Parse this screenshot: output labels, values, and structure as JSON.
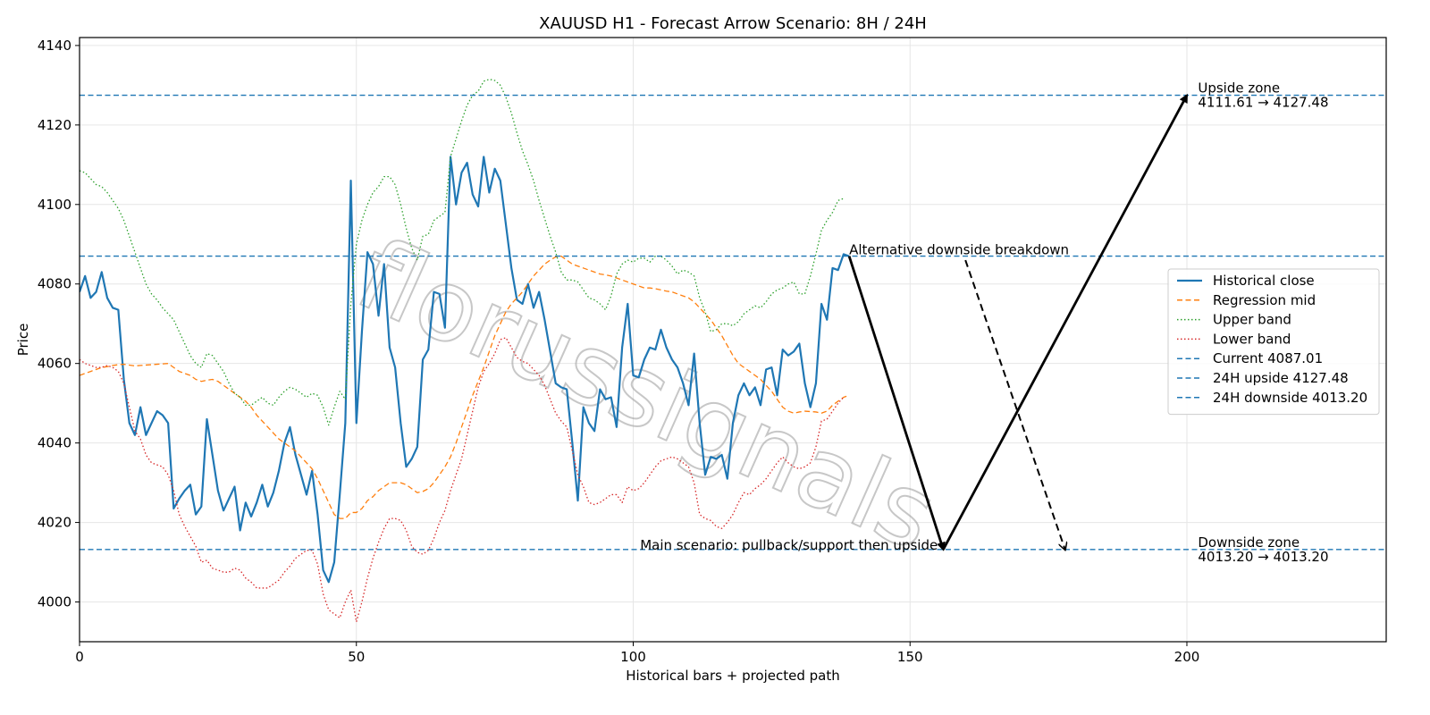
{
  "chart_data": {
    "type": "line",
    "title": "XAUUSD H1 - Forecast Arrow Scenario: 8H / 24H",
    "xlabel": "Historical bars + projected path",
    "ylabel": "Price",
    "xlim": [
      0,
      236
    ],
    "ylim": [
      3990,
      4142
    ],
    "x_ticks": [
      0,
      50,
      100,
      150,
      200
    ],
    "y_ticks": [
      4000,
      4020,
      4040,
      4060,
      4080,
      4100,
      4120,
      4140
    ],
    "grid": true,
    "legend_position": "center-right",
    "watermark": "florussignals",
    "series": [
      {
        "name": "Historical close",
        "style": "solid",
        "color": "#1f77b4",
        "values": [
          4078,
          4082,
          4076.5,
          4078,
          4083,
          4076.5,
          4074,
          4073.5,
          4056,
          4045,
          4042,
          4049,
          4042,
          4045,
          4048,
          4047,
          4045,
          4023.5,
          4026,
          4028,
          4029.5,
          4022,
          4024,
          4046,
          4037,
          4028,
          4023,
          4026,
          4029,
          4018,
          4025,
          4021.5,
          4025,
          4029.5,
          4024,
          4027.5,
          4033,
          4040,
          4044,
          4037,
          4032,
          4027,
          4033,
          4022,
          4008,
          4005,
          4010,
          4027,
          4045,
          4106,
          4045,
          4068,
          4088,
          4085,
          4072,
          4085,
          4064,
          4059,
          4045,
          4034,
          4036,
          4039,
          4061,
          4063.5,
          4078,
          4077.5,
          4069,
          4112,
          4100,
          4108,
          4110.5,
          4102.5,
          4099.5,
          4112,
          4103,
          4109,
          4106,
          4095,
          4084,
          4076,
          4075,
          4080,
          4074,
          4078,
          4071,
          4063,
          4055,
          4054,
          4053.5,
          4040,
          4025.5,
          4049,
          4045,
          4043,
          4053.5,
          4051,
          4051.5,
          4044,
          4064,
          4075,
          4057,
          4056.5,
          4061,
          4064,
          4063.5,
          4068.5,
          4064,
          4061,
          4059,
          4055,
          4049.5,
          4062.5,
          4045,
          4032,
          4036.5,
          4036,
          4037,
          4031,
          4045,
          4052,
          4055,
          4052,
          4054,
          4049.5,
          4058.5,
          4059,
          4052,
          4063.5,
          4062,
          4063,
          4065,
          4055,
          4049,
          4055,
          4075,
          4071,
          4084,
          4083.5,
          4087.5,
          4087
        ]
      },
      {
        "name": "Regression mid",
        "style": "dashed",
        "color": "#ff7f0e",
        "values": [
          4057,
          4057.5,
          4058,
          4058.5,
          4059,
          4059.2,
          4059.5,
          4059.7,
          4059.8,
          4059.6,
          4059.4,
          4059.5,
          4059.6,
          4059.7,
          4059.8,
          4059.9,
          4060,
          4059,
          4058,
          4057.5,
          4057,
          4056,
          4055.5,
          4055.8,
          4056,
          4055.5,
          4054.5,
          4053.5,
          4052.5,
          4051.5,
          4050.5,
          4049,
          4047,
          4045.5,
          4044,
          4042.5,
          4041,
          4040,
          4039,
          4038,
          4036.5,
          4035,
          4033.5,
          4031,
          4028,
          4025,
          4022,
          4021,
          4021,
          4022.5,
          4022.5,
          4023.5,
          4025.5,
          4026.5,
          4028,
          4029,
          4030,
          4030,
          4030,
          4029.5,
          4028.5,
          4027.5,
          4027.8,
          4028.5,
          4030,
          4032,
          4034,
          4036.5,
          4040,
          4044,
          4048,
          4052,
          4055.5,
          4059,
          4063,
          4067,
          4070,
          4073,
          4075,
          4076.5,
          4078,
          4080,
          4082,
          4083.5,
          4085,
          4086,
          4086.8,
          4087,
          4086,
          4085,
          4084.5,
          4084,
          4083.5,
          4083,
          4082.5,
          4082.3,
          4082,
          4081.5,
          4081,
          4080.5,
          4080,
          4079.5,
          4079,
          4079,
          4078.8,
          4078.5,
          4078.2,
          4078,
          4077.5,
          4077,
          4076.5,
          4075.5,
          4074,
          4072.5,
          4071,
          4069,
          4067,
          4064.5,
          4062,
          4060,
          4059,
          4058,
          4057,
          4056,
          4054.5,
          4053,
          4051,
          4049,
          4048,
          4047.5,
          4047.8,
          4048,
          4047.9,
          4047.8,
          4047.5,
          4048,
          4049.5,
          4050.5,
          4051.5,
          4052
        ]
      },
      {
        "name": "Upper band",
        "style": "dotted",
        "color": "#2ca02c",
        "values": [
          4108.5,
          4108,
          4106.5,
          4105,
          4104.5,
          4103,
          4101,
          4099,
          4096,
          4092,
          4088,
          4084,
          4080,
          4077.5,
          4076,
          4074,
          4072.5,
          4071,
          4068,
          4065,
          4062,
          4060,
          4059,
          4062.5,
          4062,
          4060,
          4058,
          4055,
          4052.5,
          4051.5,
          4049.5,
          4049.5,
          4050.5,
          4051.5,
          4050,
          4049.5,
          4051.5,
          4053,
          4054,
          4053.5,
          4052.5,
          4051.5,
          4052.5,
          4052,
          4049,
          4044.5,
          4049,
          4053,
          4051,
          4075,
          4090,
          4096,
          4100,
          4103,
          4104.5,
          4107,
          4107,
          4105,
          4100,
          4094,
          4089,
          4086,
          4092,
          4092.5,
          4096,
          4097,
          4098,
          4112,
          4116.5,
          4121,
          4125,
          4127.5,
          4128.5,
          4131,
          4131.5,
          4131.2,
          4130,
          4127,
          4123,
          4118,
          4113.5,
          4110,
          4106,
          4101,
          4096.5,
          4092,
          4088,
          4083,
          4081,
          4081,
          4080.5,
          4078.5,
          4076.5,
          4076,
          4075,
          4073.5,
          4077,
          4082.5,
          4085,
          4086,
          4085.5,
          4086.5,
          4086.5,
          4085.5,
          4087,
          4087,
          4086,
          4084.5,
          4082.5,
          4083.5,
          4083,
          4082,
          4076.5,
          4073,
          4068,
          4068.5,
          4070,
          4070,
          4069.5,
          4070.5,
          4072.5,
          4073.5,
          4074.5,
          4074,
          4075.5,
          4077.5,
          4078.5,
          4079,
          4080,
          4080.5,
          4077.5,
          4077.5,
          4082,
          4087.5,
          4093.5,
          4096,
          4098,
          4101,
          4101.5
        ]
      },
      {
        "name": "Lower band",
        "style": "dotted",
        "color": "#d62728",
        "values": [
          4061,
          4060,
          4059.5,
          4059,
          4059,
          4059.5,
          4059,
          4058,
          4055,
          4049,
          4043,
          4041,
          4037,
          4035,
          4034.5,
          4034,
          4032,
          4028,
          4022,
          4019,
          4016.5,
          4014,
          4010,
          4010.5,
          4008.5,
          4008,
          4007.5,
          4007.5,
          4008.5,
          4008,
          4006,
          4005,
          4003.5,
          4003.5,
          4003.5,
          4004.5,
          4005.5,
          4007.5,
          4009,
          4011,
          4012,
          4013,
          4013,
          4009.5,
          4002,
          3998,
          3997,
          3996,
          4000,
          4003,
          3995,
          4000,
          4006,
          4011,
          4015,
          4018.5,
          4021,
          4021,
          4020.5,
          4018,
          4014,
          4012.5,
          4012,
          4013,
          4016,
          4020,
          4023,
          4028,
          4032,
          4036,
          4042,
          4048,
          4054,
          4058,
          4060,
          4062.5,
          4066,
          4066.5,
          4064,
          4061.5,
          4060.5,
          4060,
          4058.5,
          4057,
          4054.5,
          4051,
          4047.5,
          4045.5,
          4044,
          4038,
          4032,
          4029,
          4025,
          4024.5,
          4025,
          4026,
          4027,
          4027,
          4025,
          4029,
          4028,
          4028.5,
          4030,
          4032,
          4034,
          4035.5,
          4036,
          4036.5,
          4036,
          4035,
          4034,
          4030,
          4022,
          4021,
          4020.5,
          4019,
          4018.5,
          4020,
          4022,
          4025,
          4027.5,
          4027,
          4028.5,
          4029.5,
          4031,
          4033,
          4035,
          4036.5,
          4035,
          4034,
          4033.5,
          4034,
          4035,
          4039,
          4045.5,
          4046,
          4048,
          4050,
          4051.5
        ]
      },
      {
        "name": "Current 4087.01",
        "style": "dashed",
        "color": "#1f77b4",
        "hline": 4087.01
      },
      {
        "name": "24H upside 4127.48",
        "style": "dashed",
        "color": "#1f77b4",
        "hline": 4127.48
      },
      {
        "name": "24H downside 4013.20",
        "style": "dashed",
        "color": "#1f77b4",
        "hline": 4013.2
      }
    ],
    "arrows": [
      {
        "id": "main-leg-1",
        "from": [
          139,
          4087.01
        ],
        "to": [
          156,
          4013.2
        ],
        "style": "solid"
      },
      {
        "id": "main-leg-2",
        "from": [
          156,
          4013.2
        ],
        "to": [
          200,
          4127.48
        ],
        "style": "solid"
      },
      {
        "id": "alt-leg",
        "from": [
          160,
          4086
        ],
        "to": [
          178,
          4013.2
        ],
        "style": "dashed"
      }
    ],
    "annotations": [
      {
        "id": "upside-zone",
        "lines": [
          "Upside zone",
          "4111.61 → 4127.48"
        ],
        "x": 202,
        "y": 4127.48,
        "anchor": "start"
      },
      {
        "id": "downside-zone",
        "lines": [
          "Downside zone",
          "4013.20 → 4013.20"
        ],
        "x": 202,
        "y": 4013.2,
        "anchor": "start"
      },
      {
        "id": "alt-breakdown",
        "lines": [
          "Alternative downside breakdown"
        ],
        "x": 139,
        "y": 4087.5,
        "anchor": "start"
      },
      {
        "id": "main-scenario",
        "lines": [
          "Main scenario: pullback/support then upside"
        ],
        "x": 155,
        "y": 4013.2,
        "anchor": "end"
      }
    ],
    "colors": {
      "arrow": "#000000",
      "grid": "#e6e6e6"
    }
  }
}
